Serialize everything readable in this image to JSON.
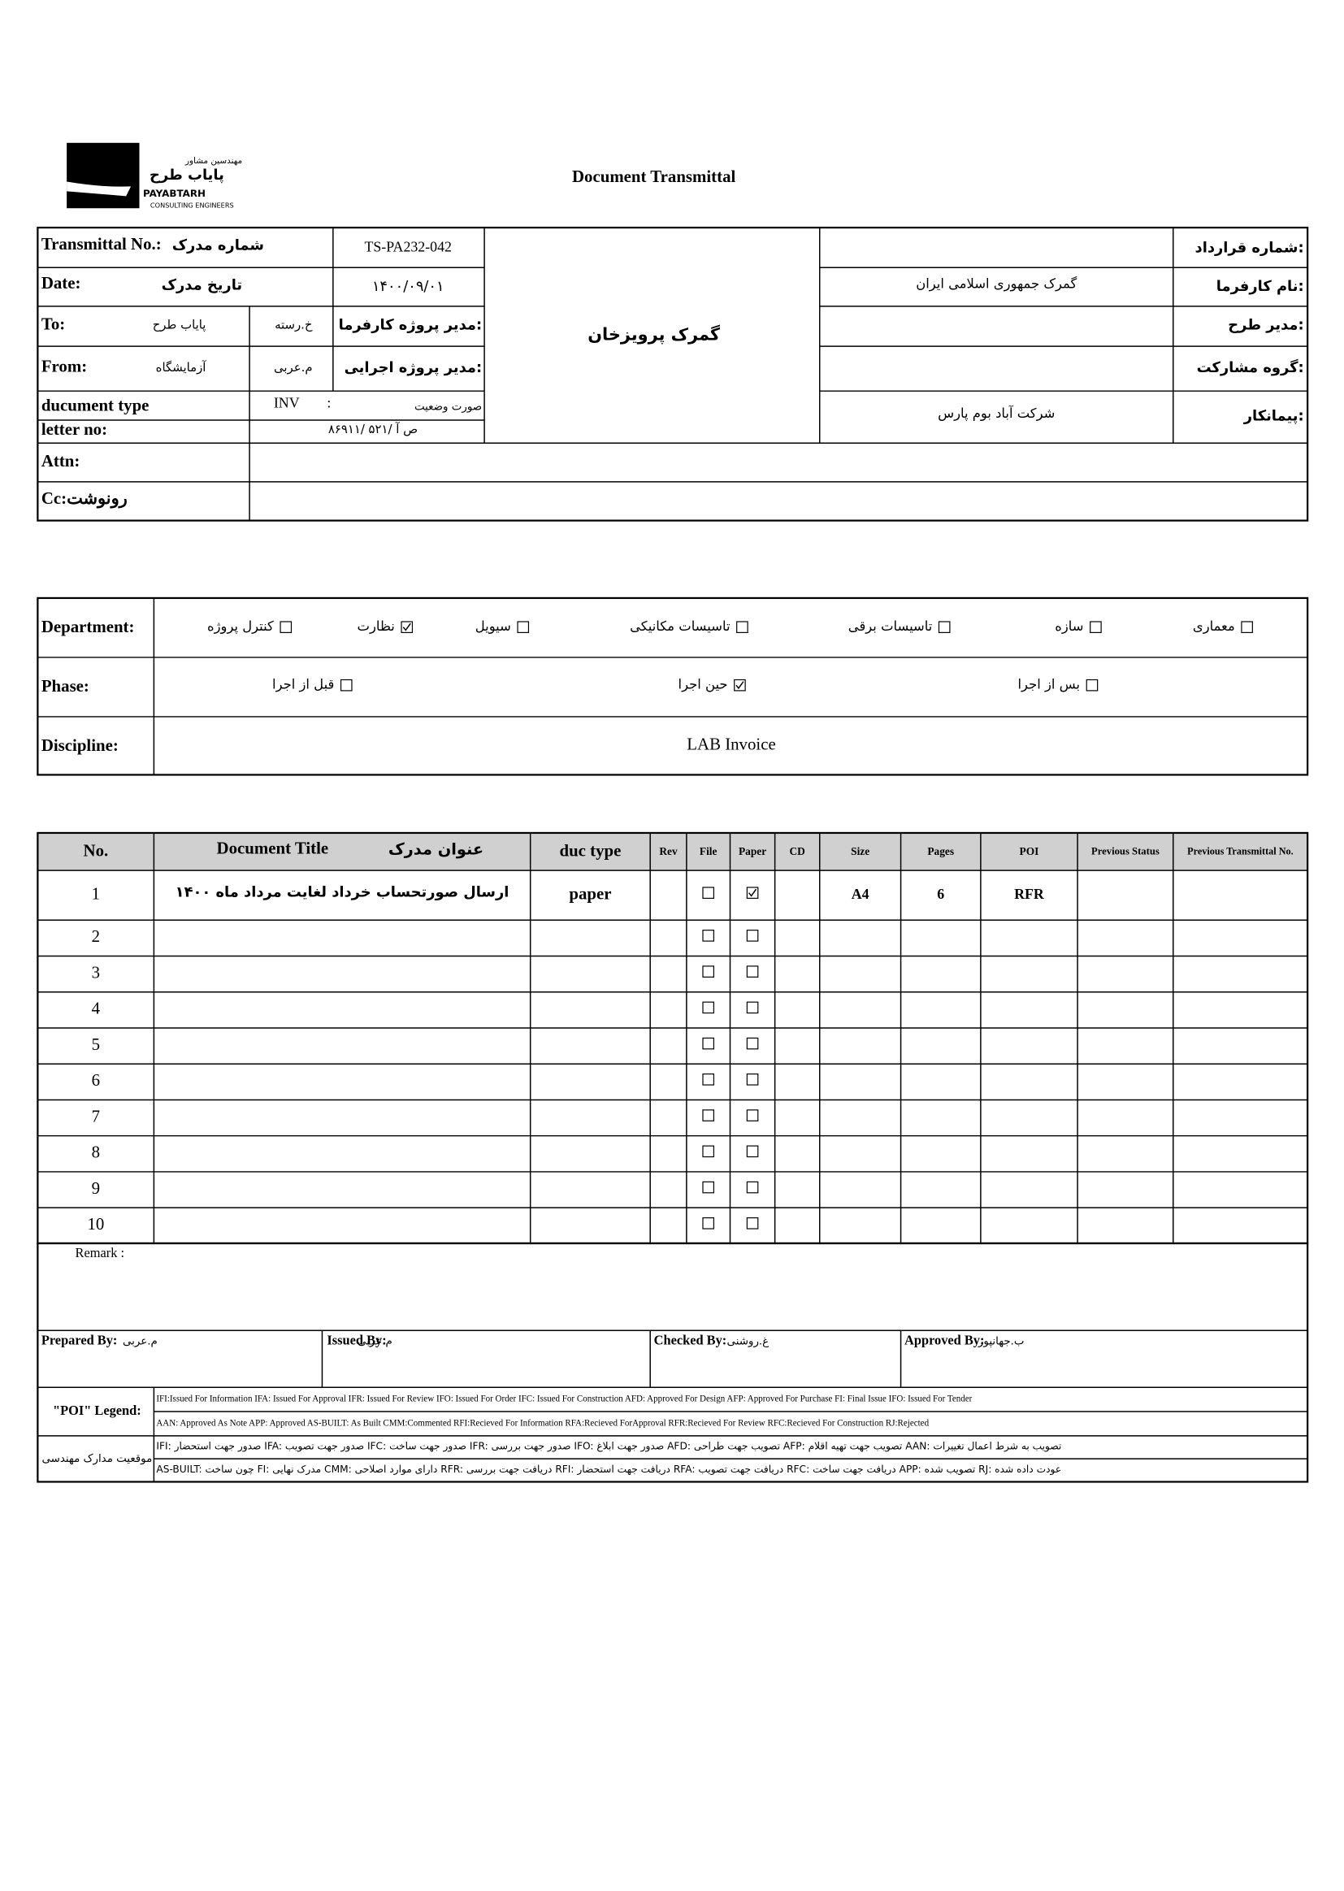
{
  "logo": {
    "fa_small": "مهندسین مشاور",
    "fa": "پایاب طرح",
    "en": "PAYABTARH",
    "sub": "CONSULTING ENGINEERS"
  },
  "title": "Document Transmittal",
  "info": {
    "transmittal_no": {
      "label_en": "Transmittal No.:",
      "label_fa": "شماره مدرک",
      "value": "TS-PA232-042"
    },
    "date": {
      "label_en": "Date:",
      "label_fa": "تاریخ مدرک",
      "value": "۱۴۰۰/۰۹/۰۱"
    },
    "to": {
      "label": "To:",
      "value": "پایاب طرح",
      "name": "خ.رسته",
      "role": "مدیر پروژه کارفرما:"
    },
    "from": {
      "label": "From:",
      "value": "آزمایشگاه",
      "name": "م.عربی",
      "role": "مدیر پروژه اجرایی:"
    },
    "document_type": {
      "label": "ducument type",
      "value": "INV",
      "sep": ":",
      "desc": "صورت وضعیت"
    },
    "letter_no": {
      "label": "letter no:",
      "value": "۸۶۹۱۱/ ۵۲۱/ ص آ"
    },
    "attn": {
      "label": "Attn:"
    },
    "cc": {
      "label": "Cc:رونوشت"
    },
    "project": "گمرک پرویزخان",
    "contract": [
      {
        "label": "شماره قرارداد:"
      },
      {
        "label": "نام کارفرما:",
        "value": "گمرک جمهوری اسلامی ایران"
      },
      {
        "label": "مدیر طرح:"
      },
      {
        "label": "گروه مشارکت:"
      },
      {
        "label": "پیمانکار:",
        "value": "شرکت آباد بوم پارس"
      }
    ]
  },
  "department": {
    "label": "Department:",
    "options": [
      {
        "name": "معماری",
        "checked": false
      },
      {
        "name": "سازه",
        "checked": false
      },
      {
        "name": "تاسیسات برقی",
        "checked": false
      },
      {
        "name": "تاسیسات مکانیکی",
        "checked": false
      },
      {
        "name": "سیویل",
        "checked": false
      },
      {
        "name": "نظارت",
        "checked": true
      },
      {
        "name": "کنترل پروژه",
        "checked": false
      }
    ]
  },
  "phase": {
    "label": "Phase:",
    "options": [
      {
        "name": "بس از اجرا",
        "checked": false
      },
      {
        "name": "حین اجرا",
        "checked": true
      },
      {
        "name": "قبل از اجرا",
        "checked": false
      }
    ]
  },
  "discipline": {
    "label": "Discipline:",
    "value": "LAB Invoice"
  },
  "table": {
    "headers": {
      "no": "No.",
      "title_en": "Document Title",
      "title_fa": "عنوان مدرک",
      "type": "duc type",
      "rev": "Rev",
      "file": "File",
      "paper": "Paper",
      "cd": "CD",
      "size": "Size",
      "pages": "Pages",
      "poi": "POI",
      "prev_status": "Previous Status",
      "prev_no": "Previous Transmittal No."
    },
    "rows": [
      {
        "no": 1,
        "title": "ارسال صورتحساب خرداد لغایت مرداد ماه ۱۴۰۰",
        "type": "paper",
        "file": false,
        "paper": true,
        "size": "A4",
        "pages": 6,
        "poi": "RFR"
      },
      {
        "no": 2,
        "file": false,
        "paper": false
      },
      {
        "no": 3,
        "file": false,
        "paper": false
      },
      {
        "no": 4,
        "file": false,
        "paper": false
      },
      {
        "no": 5,
        "file": false,
        "paper": false
      },
      {
        "no": 6,
        "file": false,
        "paper": false
      },
      {
        "no": 7,
        "file": false,
        "paper": false
      },
      {
        "no": 8,
        "file": false,
        "paper": false
      },
      {
        "no": 9,
        "file": false,
        "paper": false
      },
      {
        "no": 10,
        "file": false,
        "paper": false
      }
    ]
  },
  "remark": "Remark :",
  "signatures": [
    {
      "label": "Prepared By:",
      "name": "م.عربی"
    },
    {
      "label": "Issued By:",
      "name": "م.عربی"
    },
    {
      "label": "Checked By:",
      "name": "غ.روشنی"
    },
    {
      "label": "Approved By:",
      "name": "ب.جهانپور"
    }
  ],
  "legend": {
    "label_en": "\"POI\" Legend:",
    "label_fa": "موقعیت مدارک مهندسی",
    "lines": [
      "IFI:Issued For Information IFA: Issued For Approval IFR: Issued For Review IFO: Issued For Order IFC: Issued For Construction AFD: Approved For Design AFP: Approved For Purchase FI: Final Issue IFO: Issued For Tender",
      "AAN: Approved As Note APP: Approved AS-BUILT: As Built CMM:Commented RFI:Recieved For Information RFA:Recieved ForApproval RFR:Recieved For Review RFC:Recieved For Construction RJ:Rejected",
      "IFI: صدور جهت استحضار   IFA: صدور جهت تصویب   IFC: صدور جهت ساخت   IFR: صدور جهت بررسی   IFO: صدور جهت ابلاغ   AFD: تصویب جهت طراحی   AFP: تصویب جهت تهیه اقلام   AAN: تصویب به شرط اعمال تغییرات",
      "AS-BUILT: چون ساخت   FI: مدرک نهایی   CMM: دارای موارد اصلاحی   RFR: دریافت جهت بررسی   RFI: دریافت جهت استحضار   RFA: دریافت جهت تصویب   RFC: دریافت جهت ساخت   APP: تصویب شده   RJ: عودت داده شده"
    ]
  }
}
